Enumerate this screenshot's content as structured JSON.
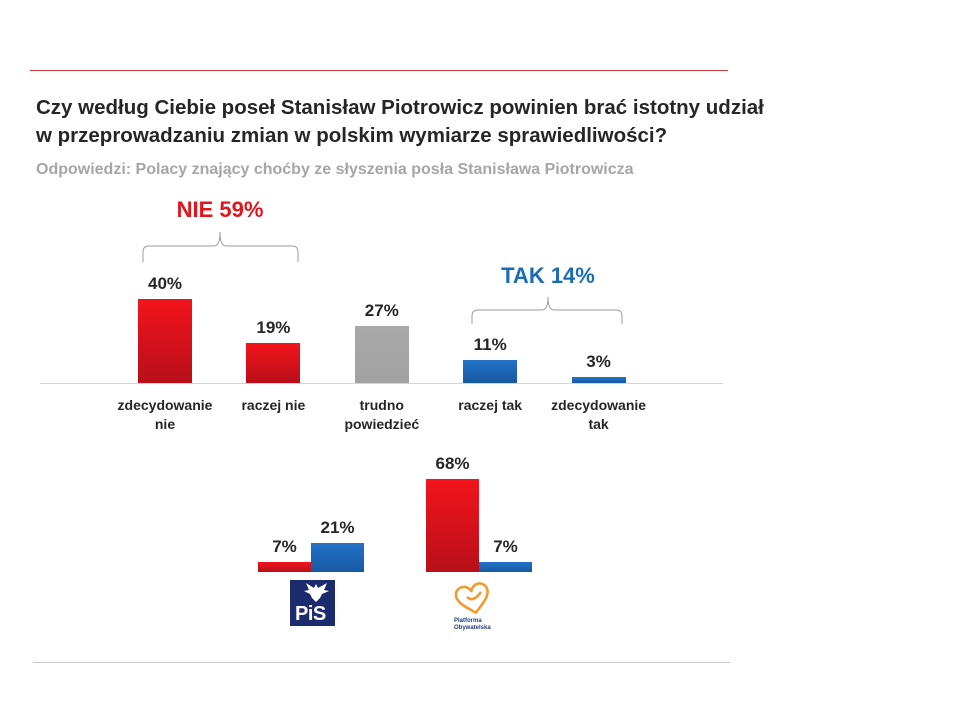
{
  "colors": {
    "top_rule": "#d2373b",
    "bottom_rule": "#c8c8c8"
  },
  "chart_data": [
    {
      "type": "bar",
      "title": [
        "Czy według Ciebie poseł Stanisław Piotrowicz powinien brać istotny udział",
        "w przeprowadzaniu zmian w polskim wymiarze sprawiedliwości?"
      ],
      "subtitle": "Odpowiedzi: Polacy znający choćby ze słyszenia posła Stanisława Piotrowicza",
      "categories": [
        "zdecydowanie nie",
        "raczej nie",
        "trudno powiedzieć",
        "raczej tak",
        "zdecydowanie tak"
      ],
      "values": [
        40,
        19,
        27,
        11,
        3
      ],
      "value_labels": [
        "40%",
        "19%",
        "27%",
        "11%",
        "3%"
      ],
      "bar_colors": [
        {
          "top": "#f3141c",
          "bottom": "#b70f1a"
        },
        {
          "top": "#f3141c",
          "bottom": "#b70f1a"
        },
        {
          "top": "#a8a8a8",
          "bottom": "#a2a2a2"
        },
        {
          "top": "#2372c8",
          "bottom": "#1859a2"
        },
        {
          "top": "#2372c8",
          "bottom": "#1859a2"
        }
      ],
      "annotations": [
        {
          "text": "NIE 59%",
          "color": "#e3151a",
          "span": [
            0,
            1
          ]
        },
        {
          "text": "TAK 14%",
          "color": "#1b6cb7",
          "span": [
            3,
            4
          ]
        }
      ],
      "grid": false
    },
    {
      "type": "bar",
      "categories": [
        "PiS",
        "Platforma Obywatelska"
      ],
      "series": [
        {
          "color": {
            "top": "#f3141c",
            "bottom": "#b70f1a"
          },
          "values": [
            7,
            68
          ],
          "value_labels": [
            "7%",
            "68%"
          ]
        },
        {
          "color": {
            "top": "#2372c8",
            "bottom": "#1859a2"
          },
          "values": [
            21,
            7
          ],
          "value_labels": [
            "21%",
            "7%"
          ]
        }
      ],
      "logo_colors": {
        "pis_background": "#1c2b6e",
        "po_heart": "#f29a2e",
        "po_text": "#203d7c"
      }
    }
  ]
}
